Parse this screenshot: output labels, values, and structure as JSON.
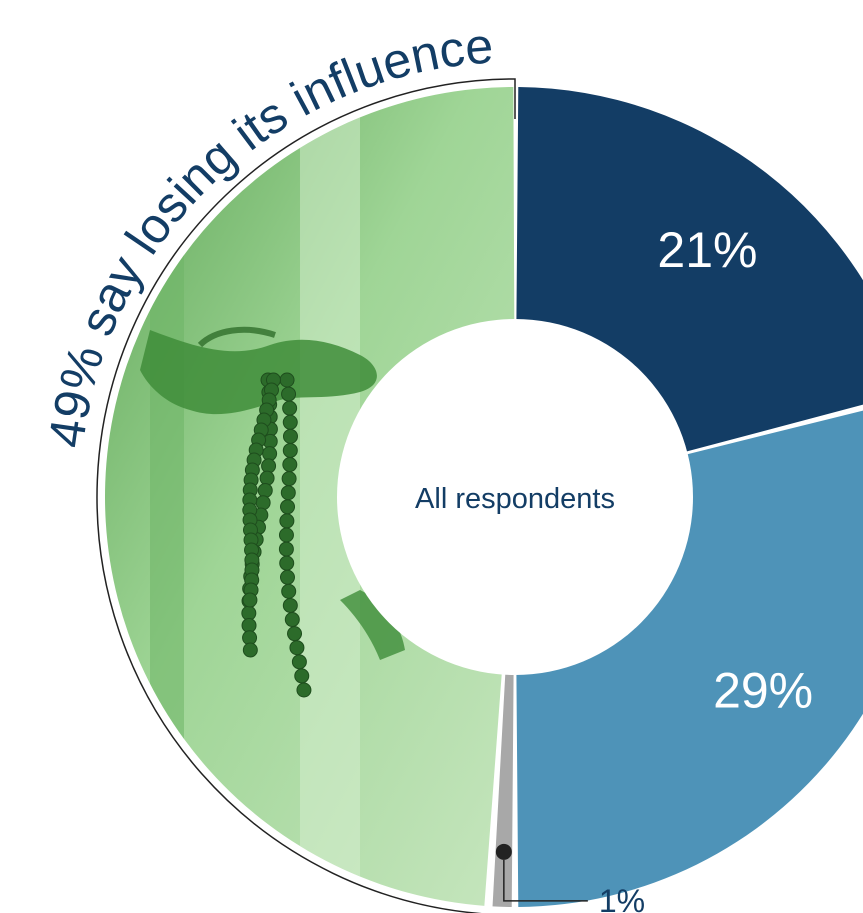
{
  "colors": {
    "dark": "#133d65",
    "medium": "#4e93b8",
    "small": "#a8a8a8",
    "photo_tint": "#8fcf8a",
    "photo_light": "#c9e8c2",
    "text_dark": "#133d65",
    "text_light": "#ffffff"
  },
  "chart_data": {
    "type": "pie",
    "title": "49% say losing its influence",
    "center_label": "All respondents",
    "slices": [
      {
        "value": 21,
        "label": "21%",
        "color": "#133d65"
      },
      {
        "value": 29,
        "label": "29%",
        "color": "#4e93b8"
      },
      {
        "value": 1,
        "label": "1%",
        "color": "#a8a8a8"
      },
      {
        "value": 49,
        "label": "",
        "color": "#8fcf8a"
      }
    ],
    "photo_icons": [
      "hand-icon",
      "prayer-beads-icon"
    ]
  }
}
